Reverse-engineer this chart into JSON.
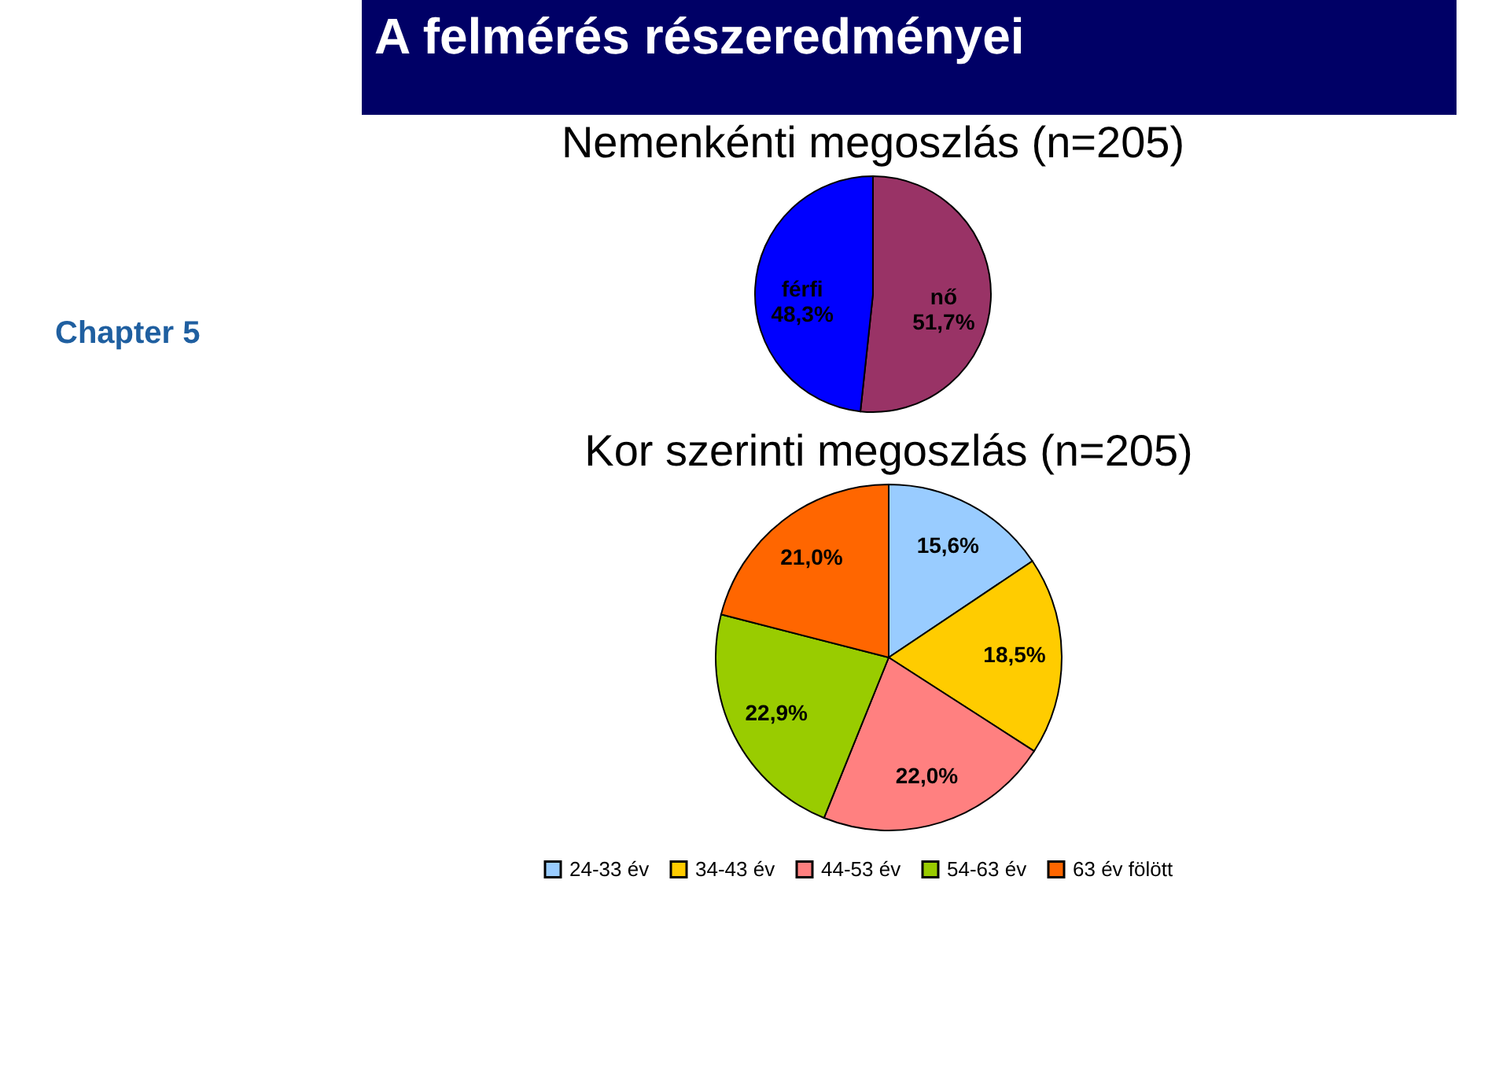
{
  "chart_data": [
    {
      "type": "other",
      "title": "A felmérés részeredményei"
    },
    {
      "type": "pie",
      "title": "Nemenkénti megoszlás (n=205)",
      "annotations": [
        "Chapter 5"
      ],
      "categories": [
        "nő",
        "férfi"
      ],
      "values": [
        51.7,
        48.3
      ],
      "colors": [
        "#993366",
        "#0000ff"
      ],
      "value_labels": [
        "51,7%",
        "48,3%"
      ],
      "legend": false
    },
    {
      "type": "pie",
      "title": "Kor szerinti megoszlás (n=205)",
      "categories": [
        "24-33 év",
        "34-43 év",
        "44-53 év",
        "54-63 év",
        "63 év fölött"
      ],
      "values": [
        15.6,
        18.5,
        22.0,
        22.9,
        21.0
      ],
      "colors": [
        "#99ccff",
        "#ffcc00",
        "#ff8080",
        "#99cc00",
        "#ff6600"
      ],
      "value_labels": [
        "15,6%",
        "18,5%",
        "22,0%",
        "22,9%",
        "21,0%"
      ],
      "legend": "bottom"
    }
  ]
}
